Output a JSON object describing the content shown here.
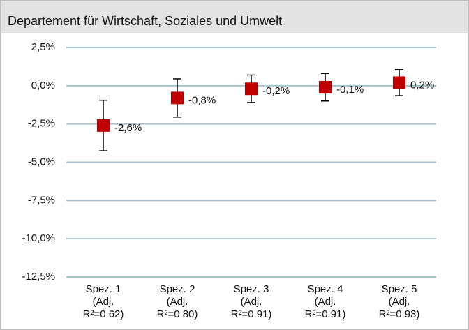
{
  "chart_data": {
    "type": "errorbar",
    "title": "Departement für Wirtschaft, Soziales und Umwelt",
    "categories": [
      [
        "Spez. 1",
        "(Adj.",
        "R²=0.62)"
      ],
      [
        "Spez. 2",
        "(Adj.",
        "R²=0.80)"
      ],
      [
        "Spez. 3",
        "(Adj.",
        "R²=0.91)"
      ],
      [
        "Spez. 4",
        "(Adj.",
        "R²=0.91)"
      ],
      [
        "Spez. 5",
        "(Adj.",
        "R²=0.93)"
      ]
    ],
    "values": [
      -2.6,
      -0.8,
      -0.2,
      -0.1,
      0.2
    ],
    "value_labels": [
      "-2,6%",
      "-0,8%",
      "-0,2%",
      "-0,1%",
      "0,2%"
    ],
    "errors": [
      1.65,
      1.25,
      0.9,
      0.9,
      0.85
    ],
    "color": "#c00000",
    "ylim": [
      -12.5,
      2.5
    ],
    "yticks": [
      {
        "value": 2.5,
        "label": "2,5%"
      },
      {
        "value": 0,
        "label": "0,0%"
      },
      {
        "value": -2.5,
        "label": "-2,5%"
      },
      {
        "value": -5,
        "label": "-5,0%"
      },
      {
        "value": -7.5,
        "label": "-7,5%"
      },
      {
        "value": -10,
        "label": "-10,0%"
      },
      {
        "value": -12.5,
        "label": "-12,5%"
      }
    ],
    "grid": true
  }
}
